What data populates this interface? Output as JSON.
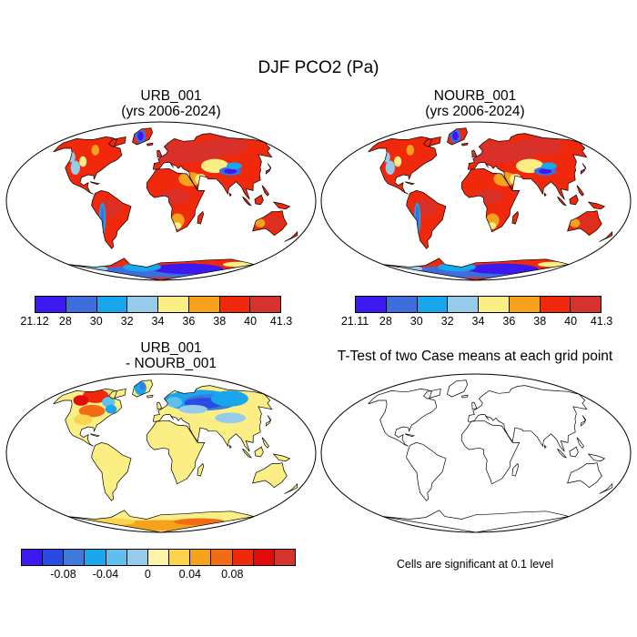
{
  "title": "DJF PCO2 (Pa)",
  "panels": [
    {
      "title_line1": "URB_001",
      "title_line2": "(yrs 2006-2024)"
    },
    {
      "title_line1": "NOURB_001",
      "title_line2": "(yrs 2006-2024)"
    },
    {
      "title_line1": "URB_001",
      "title_line2": "- NOURB_001"
    },
    {
      "title_line1": "T-Test of two Case means at each grid point",
      "title_line2": ""
    }
  ],
  "colorbars": [
    {
      "colors": [
        "#3b19ef",
        "#3e6ddc",
        "#19a6ec",
        "#96cbe9",
        "#fbee84",
        "#f6a21c",
        "#f0280c",
        "#d6322e"
      ],
      "labels": [
        "21.12",
        "28",
        "30",
        "32",
        "34",
        "36",
        "38",
        "40",
        "41.3"
      ]
    },
    {
      "colors": [
        "#3b19ef",
        "#3e6ddc",
        "#19a6ec",
        "#96cbe9",
        "#fbee84",
        "#f6a21c",
        "#f0280c",
        "#d6322e"
      ],
      "labels": [
        "21.11",
        "28",
        "30",
        "32",
        "34",
        "36",
        "38",
        "40",
        "41.3"
      ]
    },
    {
      "colors": [
        "#3b19ef",
        "#2a4be3",
        "#3e79dc",
        "#19a6ec",
        "#60bfec",
        "#96cbe9",
        "#fef4a8",
        "#fbd34e",
        "#f6a21c",
        "#f26b15",
        "#f0280c",
        "#e30a0a",
        "#d6322e"
      ],
      "labels": [
        "-0.08",
        "-0.04",
        "0",
        "0.04",
        "0.08"
      ]
    }
  ],
  "note": "Cells are significant at 0.1 level",
  "palette": {
    "ocean": "#ffffff",
    "coast": "#000000",
    "land_base_abs": "#f0280c",
    "land_base_diff": "#fbee84"
  }
}
